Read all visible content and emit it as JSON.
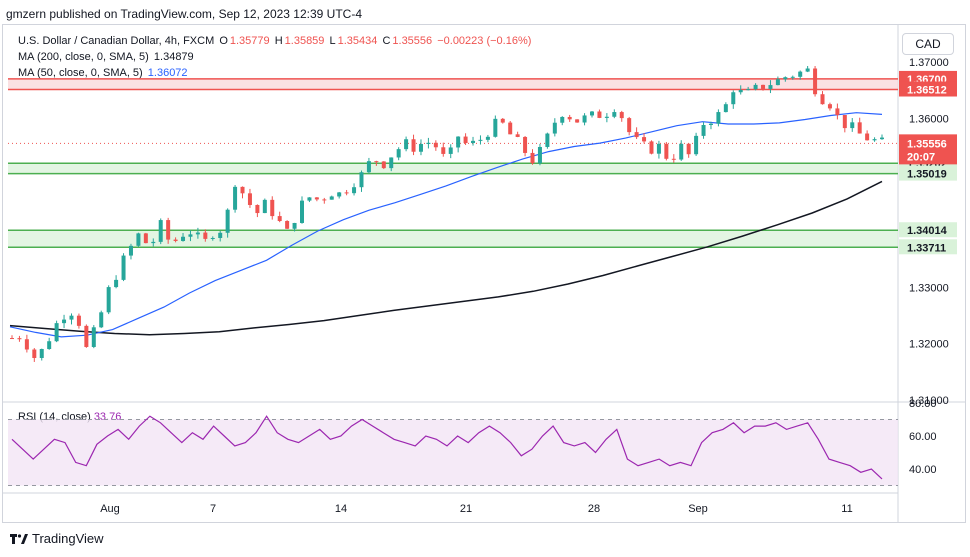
{
  "header": {
    "published": "gmzern published on TradingView.com, Sep 12, 2023 12:39 UTC-4"
  },
  "legend": {
    "symbol": "U.S. Dollar / Canadian Dollar, 4h, FXCM",
    "ohlc": {
      "o_label": "O",
      "o": "1.35779",
      "h_label": "H",
      "h": "1.35859",
      "l_label": "L",
      "l": "1.35434",
      "c_label": "C",
      "c": "1.35556",
      "change": "−0.00223 (−0.16%)"
    },
    "ma200": {
      "label": "MA (200, close, 0, SMA, 5)",
      "value": "1.34879"
    },
    "ma50": {
      "label": "MA (50, close, 0, SMA, 5)",
      "value": "1.36072"
    },
    "rsi": {
      "label": "RSI (14, close)",
      "value": "33.76"
    }
  },
  "currency_button": "CAD",
  "footer": {
    "brand": "TradingView"
  },
  "colors": {
    "up": "#26a69a",
    "down": "#ef5350",
    "ma50": "#2962ff",
    "ma200": "#131722",
    "rsi": "#9c27b0",
    "resistance_zone": "#f8d7da",
    "support_zone": "#d9f2d9"
  },
  "chart_data": [
    {
      "type": "candlestick",
      "timeframe": "4h",
      "x_ticks": [
        "Aug",
        "7",
        "14",
        "21",
        "28",
        "Sep",
        "11"
      ],
      "y_ticks": [
        "1.31000",
        "1.32000",
        "1.33000",
        "1.34000",
        "1.35000",
        "1.36000",
        "1.37000"
      ],
      "ylim": [
        1.309,
        1.3715
      ],
      "last_price": "1.35556",
      "countdown": "20:07",
      "zones": [
        {
          "name": "resistance",
          "upper": "1.36700",
          "lower": "1.36512"
        },
        {
          "name": "support-1",
          "upper": "1.35202",
          "lower": "1.35019"
        },
        {
          "name": "support-2",
          "upper": "1.34014",
          "lower": "1.33711"
        }
      ],
      "price_path": [
        1.321,
        1.3215,
        1.3175,
        1.319,
        1.323,
        1.3255,
        1.326,
        1.319,
        1.323,
        1.329,
        1.333,
        1.3365,
        1.3395,
        1.337,
        1.341,
        1.3375,
        1.3395,
        1.34,
        1.3375,
        1.34,
        1.3405,
        1.349,
        1.346,
        1.343,
        1.345,
        1.342,
        1.3395,
        1.344,
        1.346,
        1.3455,
        1.347,
        1.3465,
        1.3485,
        1.35,
        1.353,
        1.352,
        1.354,
        1.3555,
        1.3548,
        1.356,
        1.355,
        1.352,
        1.357,
        1.355,
        1.356,
        1.358,
        1.3595,
        1.357,
        1.355,
        1.3525,
        1.3545,
        1.359,
        1.3615,
        1.3595,
        1.36,
        1.3605,
        1.361,
        1.3625,
        1.358,
        1.3555,
        1.3545,
        1.355,
        1.3525,
        1.355,
        1.353,
        1.359,
        1.36,
        1.361,
        1.3655,
        1.364,
        1.365,
        1.366,
        1.3665,
        1.3675,
        1.368,
        1.3685,
        1.364,
        1.363,
        1.3595,
        1.3585,
        1.357,
        1.3562,
        1.3556
      ],
      "ma50_path": [
        1.323,
        1.322,
        1.3212,
        1.3215,
        1.3225,
        1.3245,
        1.3265,
        1.329,
        1.3312,
        1.333,
        1.3348,
        1.3375,
        1.34,
        1.342,
        1.3437,
        1.345,
        1.3465,
        1.348,
        1.3497,
        1.3513,
        1.3528,
        1.3541,
        1.355,
        1.3556,
        1.3565,
        1.3576,
        1.3587,
        1.3594,
        1.359,
        1.359,
        1.3592,
        1.3598,
        1.3605,
        1.361,
        1.3607
      ],
      "ma200_path": [
        1.3232,
        1.3227,
        1.3222,
        1.3218,
        1.3216,
        1.3218,
        1.3221,
        1.3228,
        1.3234,
        1.3241,
        1.325,
        1.3259,
        1.3267,
        1.3275,
        1.3283,
        1.3293,
        1.3306,
        1.3321,
        1.3338,
        1.3355,
        1.3372,
        1.3391,
        1.3411,
        1.3432,
        1.3457,
        1.3488
      ]
    },
    {
      "type": "line",
      "name": "RSI",
      "y_ticks": [
        "40.00",
        "60.00",
        "80.00"
      ],
      "ylim": [
        28,
        80
      ],
      "upper_band": 70,
      "lower_band": 30,
      "values": [
        58,
        52,
        46,
        52,
        58,
        56,
        44,
        42,
        55,
        60,
        64,
        58,
        66,
        72,
        68,
        62,
        56,
        62,
        58,
        66,
        60,
        54,
        56,
        62,
        72,
        62,
        58,
        56,
        60,
        64,
        58,
        60,
        66,
        70,
        66,
        62,
        58,
        56,
        54,
        60,
        58,
        54,
        60,
        56,
        62,
        66,
        62,
        56,
        48,
        52,
        60,
        66,
        56,
        54,
        56,
        50,
        58,
        64,
        46,
        42,
        44,
        46,
        42,
        44,
        42,
        56,
        62,
        64,
        68,
        62,
        66,
        66,
        68,
        64,
        66,
        68,
        58,
        46,
        44,
        42,
        38,
        40,
        34
      ]
    }
  ]
}
